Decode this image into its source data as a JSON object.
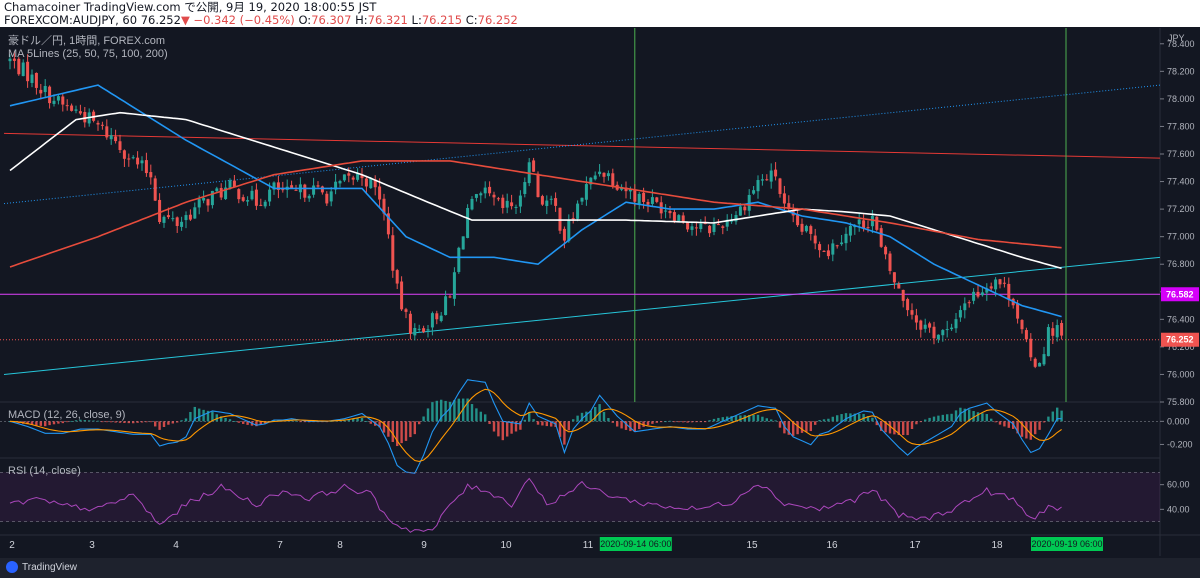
{
  "header": {
    "line1": "Chamacoiner TradingView.com で公開, 9月 19, 2020 18:00:55 JST",
    "line2_prefix": "FOREXCOM:AUDJPY, 60 ",
    "last": "76.252",
    "change": "▼ −0.342 (−0.45%)",
    "o_label": " O:",
    "o": "76.307",
    "h_label": " H:",
    "h": "76.321",
    "l_label": " L:",
    "l": "76.215",
    "c_label": " C:",
    "c": "76.252"
  },
  "legend": {
    "symbol": "豪ドル／円, 1時間, FOREX.com",
    "ma": "MA 5Lines (25, 50, 75, 100, 200)"
  },
  "macd_title": "MACD (12, 26, close, 9)",
  "rsi_title": "RSI (14, close)",
  "brand": "TradingView",
  "colors": {
    "background": "#131722",
    "up": "#26a69a",
    "down": "#ef5350",
    "ma_blue": "#2196f3",
    "ma_white": "#ffffff",
    "ma_red": "#e74c3c",
    "hline_magenta": "#e040fb",
    "vline_green": "#4caf50",
    "rsi": "#9c27b0"
  },
  "chart_data": [
    {
      "type": "candlestick",
      "pane": "price",
      "axis_label": "JPY",
      "ylim": [
        75.8,
        78.5
      ],
      "yticks": [
        "78.400",
        "78.200",
        "78.000",
        "77.800",
        "77.600",
        "77.400",
        "77.200",
        "77.000",
        "76.800",
        "76.600",
        "76.400",
        "76.200",
        "76.000",
        "75.800"
      ],
      "x_labels": [
        "2",
        "3",
        "4",
        "7",
        "8",
        "9",
        "10",
        "11",
        "15",
        "16",
        "17",
        "18"
      ],
      "x_highlights": [
        "2020-09-14  06:00",
        "2020-09-19  06:00"
      ],
      "last_price_label": "76.252",
      "hline_label": "76.582",
      "anchors": [
        [
          0,
          78.28
        ],
        [
          4,
          78.18
        ],
        [
          8,
          78.05
        ],
        [
          12,
          77.95
        ],
        [
          16,
          77.9
        ],
        [
          20,
          77.8
        ],
        [
          24,
          77.7
        ],
        [
          28,
          77.55
        ],
        [
          32,
          77.45
        ],
        [
          34,
          77.15
        ],
        [
          38,
          77.1
        ],
        [
          42,
          77.2
        ],
        [
          46,
          77.3
        ],
        [
          50,
          77.35
        ],
        [
          54,
          77.3
        ],
        [
          56,
          77.25
        ],
        [
          60,
          77.35
        ],
        [
          64,
          77.3
        ],
        [
          68,
          77.35
        ],
        [
          72,
          77.3
        ],
        [
          76,
          77.4
        ],
        [
          80,
          77.45
        ],
        [
          84,
          77.3
        ],
        [
          86,
          77.0
        ],
        [
          88,
          76.6
        ],
        [
          90,
          76.4
        ],
        [
          92,
          76.3
        ],
        [
          94,
          76.35
        ],
        [
          96,
          76.4
        ],
        [
          100,
          76.55
        ],
        [
          102,
          76.9
        ],
        [
          104,
          77.2
        ],
        [
          108,
          77.3
        ],
        [
          112,
          77.2
        ],
        [
          116,
          77.25
        ],
        [
          118,
          77.6
        ],
        [
          120,
          77.3
        ],
        [
          124,
          77.2
        ],
        [
          126,
          77.0
        ],
        [
          130,
          77.3
        ],
        [
          134,
          77.5
        ],
        [
          138,
          77.4
        ],
        [
          142,
          77.3
        ],
        [
          146,
          77.25
        ],
        [
          150,
          77.2
        ],
        [
          154,
          77.1
        ],
        [
          158,
          77.05
        ],
        [
          162,
          77.1
        ],
        [
          166,
          77.2
        ],
        [
          170,
          77.4
        ],
        [
          174,
          77.45
        ],
        [
          176,
          77.2
        ],
        [
          178,
          77.1
        ],
        [
          182,
          77.0
        ],
        [
          186,
          76.9
        ],
        [
          190,
          77.05
        ],
        [
          194,
          77.1
        ],
        [
          196,
          77.15
        ],
        [
          198,
          76.9
        ],
        [
          202,
          76.6
        ],
        [
          206,
          76.4
        ],
        [
          210,
          76.3
        ],
        [
          214,
          76.3
        ],
        [
          216,
          76.5
        ],
        [
          220,
          76.6
        ],
        [
          224,
          76.7
        ],
        [
          228,
          76.55
        ],
        [
          230,
          76.3
        ],
        [
          232,
          76.1
        ],
        [
          234,
          76.1
        ],
        [
          236,
          76.3
        ],
        [
          238,
          76.35
        ],
        [
          239,
          76.25
        ]
      ],
      "ma_lines": [
        {
          "name": "MA25",
          "color": "blue",
          "anchors": [
            [
              0,
              77.95
            ],
            [
              20,
              78.1
            ],
            [
              40,
              77.7
            ],
            [
              60,
              77.35
            ],
            [
              80,
              77.35
            ],
            [
              90,
              77.0
            ],
            [
              100,
              76.85
            ],
            [
              110,
              76.85
            ],
            [
              120,
              76.8
            ],
            [
              130,
              77.05
            ],
            [
              140,
              77.25
            ],
            [
              150,
              77.2
            ],
            [
              160,
              77.2
            ],
            [
              170,
              77.25
            ],
            [
              180,
              77.15
            ],
            [
              190,
              77.1
            ],
            [
              200,
              77.0
            ],
            [
              210,
              76.8
            ],
            [
              220,
              76.65
            ],
            [
              230,
              76.5
            ],
            [
              239,
              76.42
            ]
          ]
        },
        {
          "name": "MA75",
          "color": "white",
          "anchors": [
            [
              0,
              77.48
            ],
            [
              15,
              77.85
            ],
            [
              25,
              77.9
            ],
            [
              40,
              77.85
            ],
            [
              60,
              77.65
            ],
            [
              80,
              77.45
            ],
            [
              95,
              77.25
            ],
            [
              105,
              77.12
            ],
            [
              120,
              77.12
            ],
            [
              140,
              77.12
            ],
            [
              160,
              77.1
            ],
            [
              170,
              77.15
            ],
            [
              180,
              77.2
            ],
            [
              190,
              77.18
            ],
            [
              200,
              77.15
            ],
            [
              210,
              77.05
            ],
            [
              220,
              76.95
            ],
            [
              230,
              76.85
            ],
            [
              239,
              76.77
            ]
          ]
        },
        {
          "name": "MA200",
          "color": "red",
          "anchors": [
            [
              0,
              76.78
            ],
            [
              20,
              77.0
            ],
            [
              40,
              77.25
            ],
            [
              60,
              77.45
            ],
            [
              80,
              77.55
            ],
            [
              100,
              77.55
            ],
            [
              120,
              77.45
            ],
            [
              140,
              77.35
            ],
            [
              160,
              77.25
            ],
            [
              180,
              77.2
            ],
            [
              200,
              77.1
            ],
            [
              220,
              76.98
            ],
            [
              239,
              76.92
            ]
          ]
        }
      ]
    },
    {
      "type": "line",
      "pane": "macd",
      "ylim": [
        -0.3,
        0.15
      ],
      "yticks": [
        "0.000",
        "-0.200"
      ]
    },
    {
      "type": "line",
      "pane": "rsi",
      "ylim": [
        20,
        80
      ],
      "yticks": [
        "60.00",
        "40.00"
      ],
      "bands": [
        30,
        70
      ],
      "anchors": [
        [
          0,
          44
        ],
        [
          6,
          48
        ],
        [
          12,
          43
        ],
        [
          20,
          40
        ],
        [
          28,
          52
        ],
        [
          34,
          27
        ],
        [
          40,
          44
        ],
        [
          48,
          58
        ],
        [
          56,
          44
        ],
        [
          62,
          55
        ],
        [
          68,
          49
        ],
        [
          76,
          58
        ],
        [
          82,
          52
        ],
        [
          86,
          32
        ],
        [
          90,
          24
        ],
        [
          96,
          22
        ],
        [
          100,
          44
        ],
        [
          104,
          58
        ],
        [
          108,
          56
        ],
        [
          114,
          44
        ],
        [
          118,
          66
        ],
        [
          122,
          44
        ],
        [
          130,
          60
        ],
        [
          136,
          52
        ],
        [
          142,
          46
        ],
        [
          150,
          42
        ],
        [
          156,
          40
        ],
        [
          164,
          46
        ],
        [
          170,
          62
        ],
        [
          176,
          45
        ],
        [
          184,
          40
        ],
        [
          192,
          48
        ],
        [
          196,
          56
        ],
        [
          202,
          35
        ],
        [
          208,
          32
        ],
        [
          214,
          40
        ],
        [
          222,
          55
        ],
        [
          228,
          48
        ],
        [
          232,
          32
        ],
        [
          236,
          42
        ],
        [
          239,
          40
        ]
      ]
    }
  ]
}
